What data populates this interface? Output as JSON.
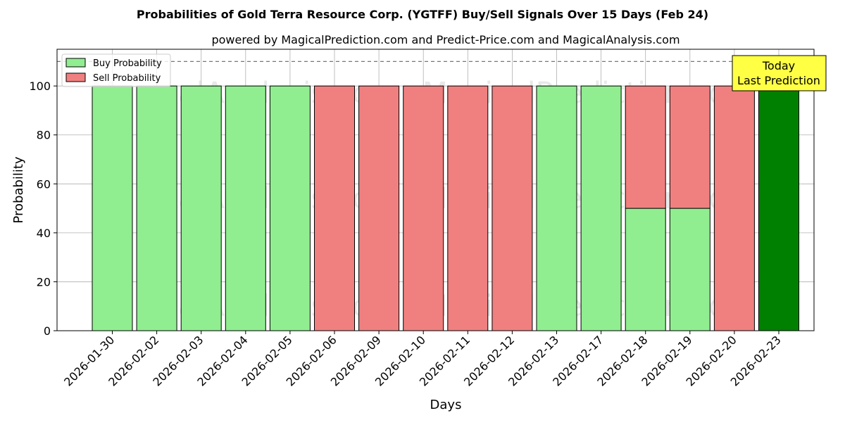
{
  "chart_data": {
    "type": "bar",
    "title": "Probabilities of Gold Terra Resource Corp. (YGTFF) Buy/Sell Signals Over 15 Days (Feb 24)",
    "subtitle": "powered by MagicalPrediction.com and Predict-Price.com and MagicalAnalysis.com",
    "xlabel": "Days",
    "ylabel": "Probability",
    "ylim": [
      0,
      115
    ],
    "yticks": [
      0,
      20,
      40,
      60,
      80,
      100
    ],
    "grid": true,
    "legend_position": "top-left",
    "categories": [
      "2026-01-30",
      "2026-02-02",
      "2026-02-03",
      "2026-02-04",
      "2026-02-05",
      "2026-02-06",
      "2026-02-09",
      "2026-02-10",
      "2026-02-11",
      "2026-02-12",
      "2026-02-13",
      "2026-02-17",
      "2026-02-18",
      "2026-02-19",
      "2026-02-20",
      "2026-02-23"
    ],
    "series": [
      {
        "name": "Buy Probability",
        "color": "#90ee90",
        "values": [
          100,
          100,
          100,
          100,
          100,
          0,
          0,
          0,
          0,
          0,
          100,
          100,
          50,
          50,
          0,
          100
        ]
      },
      {
        "name": "Sell Probability",
        "color": "#f08080",
        "values": [
          0,
          0,
          0,
          0,
          0,
          100,
          100,
          100,
          100,
          100,
          0,
          0,
          50,
          50,
          100,
          0
        ]
      }
    ],
    "highlight": {
      "index": 15,
      "color": "#008000"
    },
    "reference_line": {
      "y": 110,
      "style": "dashed"
    },
    "annotation": {
      "text_line1": "Today",
      "text_line2": "Last Prediction",
      "background": "#ffff44"
    },
    "watermark": {
      "text1": "MagicalAnalysis.com",
      "text2": "MagicalPrediction.com"
    }
  }
}
